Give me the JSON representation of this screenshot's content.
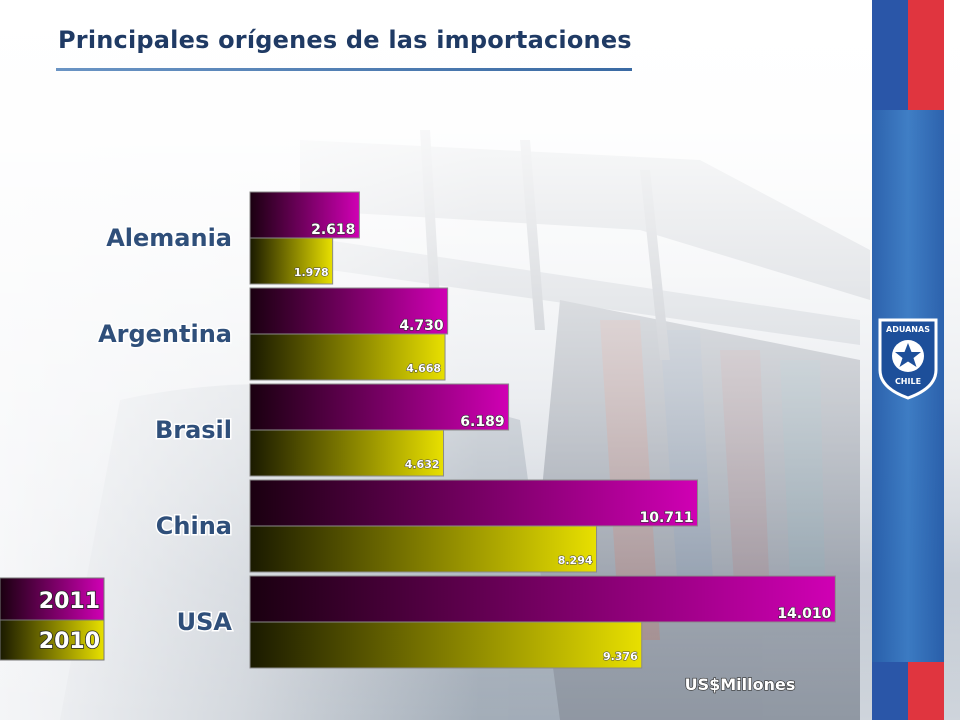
{
  "page": {
    "title": "Principales orígenes de las importaciones"
  },
  "colors": {
    "series_2011_start": "#1a0010",
    "series_2011_end": "#d000b4",
    "series_2010_start": "#1a1a00",
    "series_2010_end": "#e8e000",
    "title": "#1f3a64",
    "label_blue": "#2f4f7a"
  },
  "logo": {
    "icon": "aduanas-chile-shield-icon",
    "text_top": "ADUANAS",
    "text_bottom": "CHILE"
  },
  "chart_data": {
    "type": "bar",
    "orientation": "horizontal",
    "title": "",
    "categories": [
      "Alemania",
      "Argentina",
      "Brasil",
      "China",
      "USA"
    ],
    "series": [
      {
        "name": "2011",
        "values": [
          2618,
          4730,
          6189,
          10711,
          14010
        ],
        "labels": [
          "2.618",
          "4.730",
          "6.189",
          "10.711",
          "14.010"
        ]
      },
      {
        "name": "2010",
        "values": [
          1978,
          4668,
          4632,
          8294,
          9376
        ],
        "labels": [
          "1.978",
          "4.668",
          "4.632",
          "8.294",
          "9.376"
        ]
      }
    ],
    "unit_label": "US$Millones",
    "xlim": [
      0,
      14600
    ],
    "grid": false,
    "legend": "bottom-left"
  }
}
